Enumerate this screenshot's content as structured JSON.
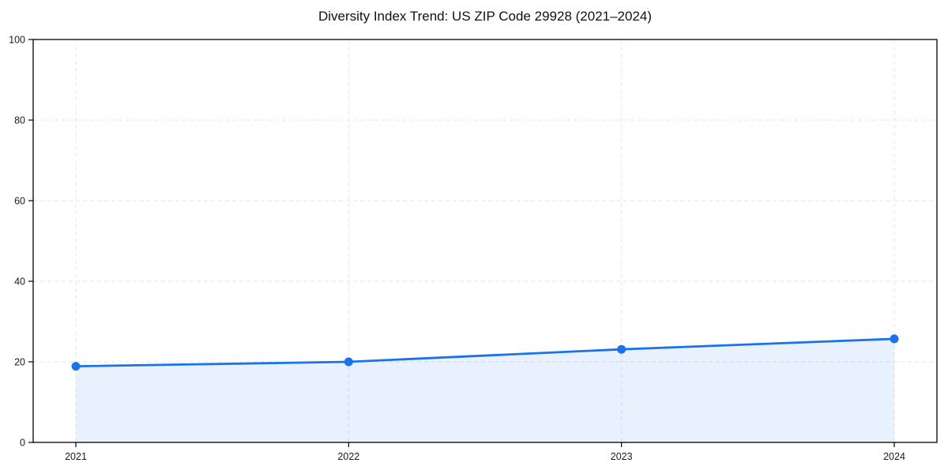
{
  "chart_data": {
    "type": "line",
    "title": "Diversity Index Trend: US ZIP Code 29928 (2021–2024)",
    "x": [
      2021,
      2022,
      2023,
      2024
    ],
    "x_labels": [
      "2021",
      "2022",
      "2023",
      "2024"
    ],
    "series": [
      {
        "name": "Diversity Index",
        "values": [
          18.9,
          20.0,
          23.1,
          25.7
        ]
      }
    ],
    "xlabel": "",
    "ylabel": "",
    "ylim": [
      0,
      100
    ],
    "yticks": [
      0,
      20,
      40,
      60,
      80,
      100
    ],
    "grid": "dashed, both axes",
    "legend_position": "none",
    "area_fill": true,
    "marker": "circle",
    "colors": {
      "line": "#1a73e8",
      "marker": "#1a73e8",
      "area": "rgba(26,115,232,0.10)",
      "grid": "#e6e6e6",
      "axis": "#000000",
      "tick_text": "#1a1a1a",
      "title_text": "#111111",
      "background": "#ffffff"
    }
  }
}
